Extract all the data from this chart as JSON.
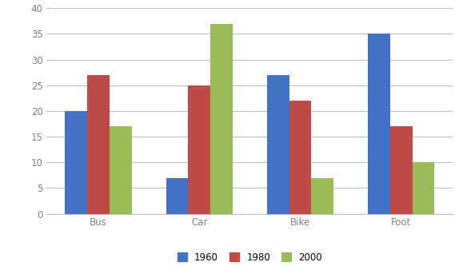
{
  "categories": [
    "Bus",
    "Car",
    "Bike",
    "Foot"
  ],
  "series": {
    "1960": [
      20,
      7,
      27,
      35
    ],
    "1980": [
      27,
      25,
      22,
      17
    ],
    "2000": [
      17,
      37,
      7,
      10
    ]
  },
  "colors": {
    "1960": "#4472C4",
    "1980": "#BE4B48",
    "2000": "#9BBB59"
  },
  "ylim": [
    0,
    40
  ],
  "yticks": [
    0,
    5,
    10,
    15,
    20,
    25,
    30,
    35,
    40
  ],
  "legend_labels": [
    "1960",
    "1980",
    "2000"
  ],
  "bar_width": 0.22,
  "background_color": "#FFFFFF",
  "grid_color": "#C0C0C0",
  "tick_color": "#808080",
  "font_size": 8.5
}
